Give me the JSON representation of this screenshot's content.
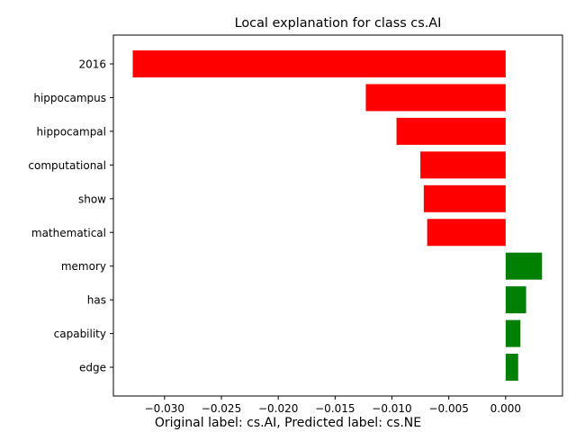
{
  "chart_data": {
    "type": "bar",
    "orientation": "horizontal",
    "title": "Local explanation for class cs.AI",
    "categories": [
      "2016",
      "hippocampus",
      "hippocampal",
      "computational",
      "show",
      "mathematical",
      "memory",
      "has",
      "capability",
      "edge"
    ],
    "values": [
      -0.0328,
      -0.0123,
      -0.0096,
      -0.0075,
      -0.0072,
      -0.0069,
      0.0032,
      0.0018,
      0.0013,
      0.0011
    ],
    "xlim": [
      -0.0345,
      0.005
    ],
    "xticks": [
      -0.03,
      -0.025,
      -0.02,
      -0.015,
      -0.01,
      -0.005,
      0.0
    ],
    "xtick_labels": [
      "−0.030",
      "−0.025",
      "−0.020",
      "−0.015",
      "−0.010",
      "−0.005",
      "0.000"
    ],
    "grid": false,
    "colors": {
      "negative": "#ff0000",
      "positive": "#008000"
    },
    "footer": "Original label: cs.AI, Predicted label: cs.NE"
  }
}
